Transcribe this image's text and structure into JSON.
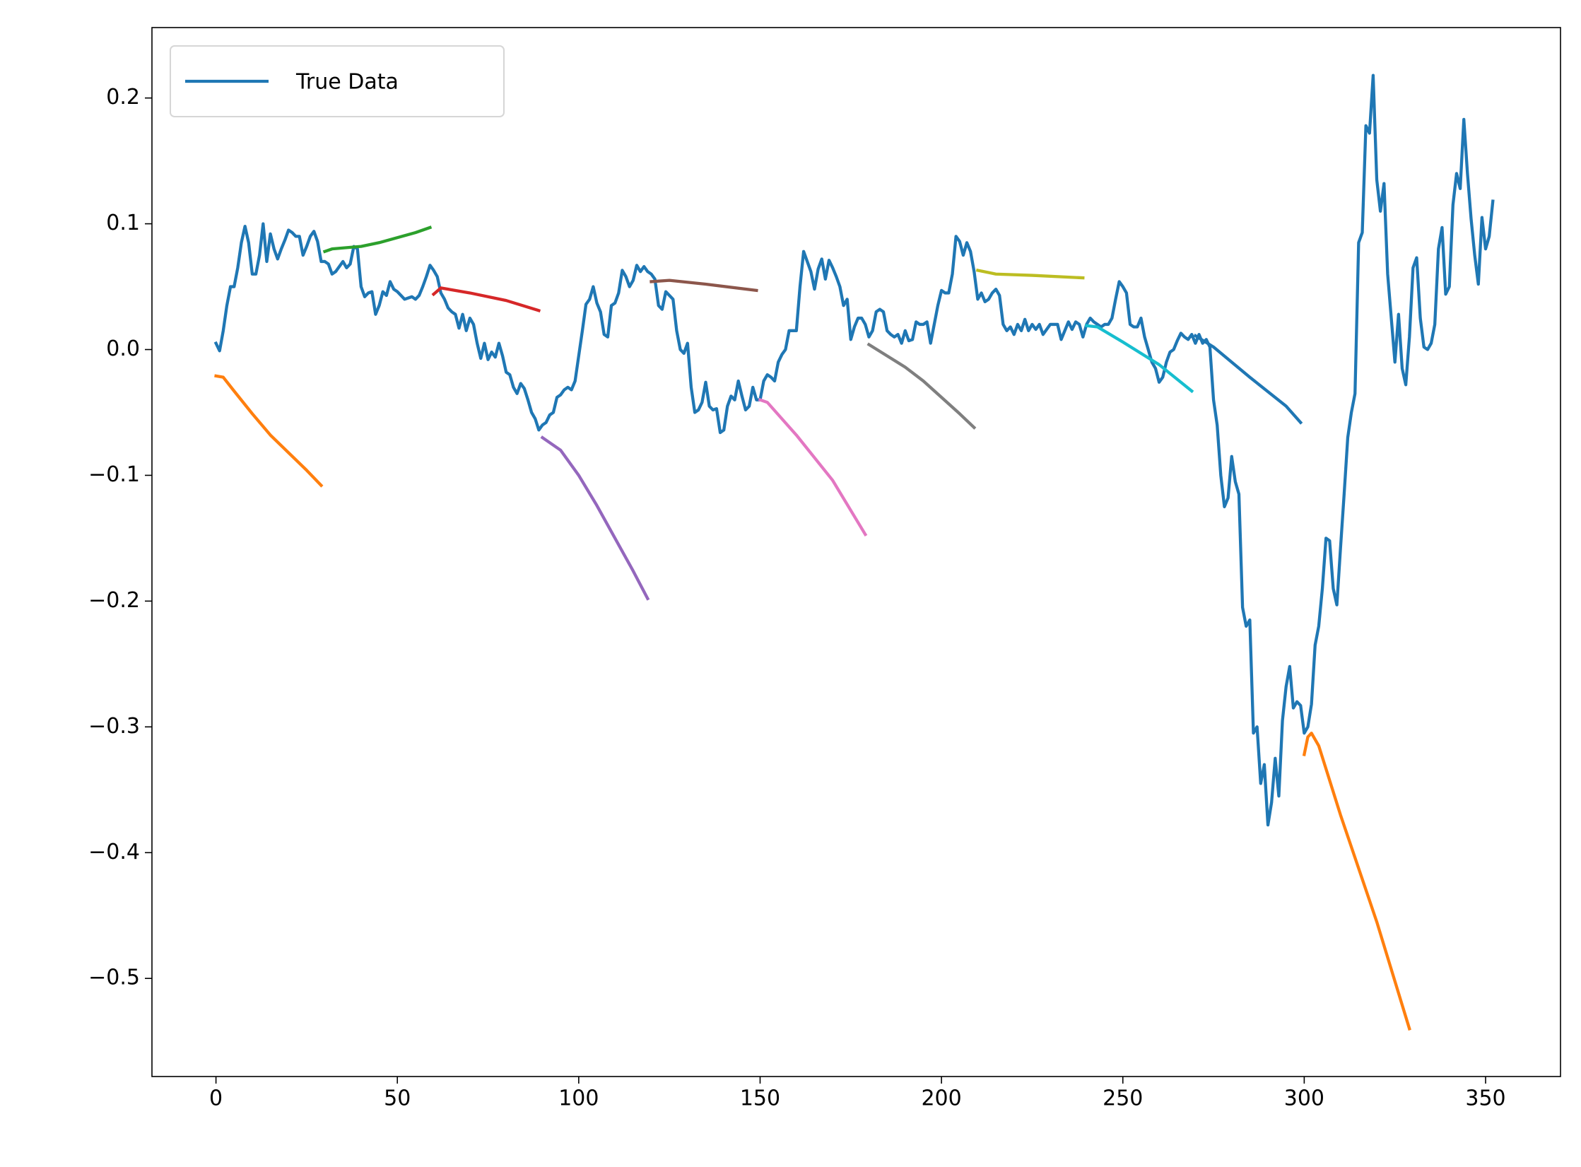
{
  "chart_data": {
    "type": "line",
    "xlim": [
      -17.65,
      370.65
    ],
    "ylim": [
      -0.578,
      0.256
    ],
    "xticks": [
      0,
      50,
      100,
      150,
      200,
      250,
      300,
      350
    ],
    "yticks": [
      {
        "value": -0.5,
        "label": "−0.5"
      },
      {
        "value": -0.4,
        "label": "−0.4"
      },
      {
        "value": -0.3,
        "label": "−0.3"
      },
      {
        "value": -0.2,
        "label": "−0.2"
      },
      {
        "value": -0.1,
        "label": "−0.1"
      },
      {
        "value": 0,
        "label": "0.0"
      },
      0.1,
      0.2
    ],
    "legend": "upper left",
    "series": [
      {
        "name": "True Data",
        "color": "#1f77b4",
        "values": [
          0.005,
          -0.001,
          0.015,
          0.035,
          0.05,
          0.05,
          0.065,
          0.085,
          0.098,
          0.085,
          0.06,
          0.06,
          0.075,
          0.1,
          0.07,
          0.092,
          0.08,
          0.072,
          0.08,
          0.087,
          0.095,
          0.093,
          0.09,
          0.09,
          0.075,
          0.082,
          0.09,
          0.094,
          0.086,
          0.07,
          0.07,
          0.068,
          0.06,
          0.062,
          0.066,
          0.07,
          0.065,
          0.068,
          0.082,
          0.08,
          0.05,
          0.042,
          0.045,
          0.046,
          0.028,
          0.035,
          0.046,
          0.043,
          0.054,
          0.048,
          0.046,
          0.043,
          0.04,
          0.041,
          0.042,
          0.04,
          0.043,
          0.05,
          0.058,
          0.067,
          0.063,
          0.058,
          0.045,
          0.04,
          0.033,
          0.03,
          0.028,
          0.017,
          0.028,
          0.015,
          0.025,
          0.02,
          0.005,
          -0.007,
          0.005,
          -0.008,
          -0.002,
          -0.006,
          0.005,
          -0.005,
          -0.018,
          -0.02,
          -0.03,
          -0.035,
          -0.027,
          -0.031,
          -0.04,
          -0.05,
          -0.055,
          -0.064,
          -0.06,
          -0.058,
          -0.052,
          -0.05,
          -0.038,
          -0.036,
          -0.032,
          -0.03,
          -0.032,
          -0.025,
          -0.005,
          0.015,
          0.036,
          0.04,
          0.05,
          0.037,
          0.03,
          0.012,
          0.01,
          0.035,
          0.037,
          0.045,
          0.063,
          0.058,
          0.05,
          0.055,
          0.067,
          0.062,
          0.066,
          0.062,
          0.06,
          0.056,
          0.035,
          0.032,
          0.046,
          0.043,
          0.04,
          0.015,
          0,
          -0.003,
          0.005,
          -0.03,
          -0.05,
          -0.048,
          -0.042,
          -0.026,
          -0.045,
          -0.048,
          -0.047,
          -0.066,
          -0.064,
          -0.045,
          -0.037,
          -0.04,
          -0.025,
          -0.037,
          -0.048,
          -0.045,
          -0.03,
          -0.04,
          -0.04,
          -0.025,
          -0.02,
          -0.022,
          -0.025,
          -0.01,
          -0.004,
          0,
          0.015,
          0.015,
          0.015,
          0.05,
          0.078,
          0.07,
          0.062,
          0.048,
          0.064,
          0.072,
          0.056,
          0.071,
          0.065,
          0.058,
          0.05,
          0.035,
          0.04,
          0.008,
          0.018,
          0.025,
          0.025,
          0.02,
          0.01,
          0.015,
          0.03,
          0.032,
          0.03,
          0.015,
          0.012,
          0.01,
          0.012,
          0.005,
          0.015,
          0.007,
          0.008,
          0.022,
          0.02,
          0.02,
          0.022,
          0.005,
          0.02,
          0.035,
          0.047,
          0.045,
          0.045,
          0.06,
          0.09,
          0.086,
          0.075,
          0.085,
          0.078,
          0.062,
          0.04,
          0.045,
          0.038,
          0.04,
          0.045,
          0.048,
          0.043,
          0.02,
          0.015,
          0.018,
          0.012,
          0.02,
          0.015,
          0.024,
          0.015,
          0.02,
          0.016,
          0.02,
          0.012,
          0.016,
          0.02,
          0.02,
          0.02,
          0.008,
          0.015,
          0.022,
          0.016,
          0.022,
          0.02,
          0.01,
          0.02,
          0.025,
          0.022,
          0.02,
          0.018,
          0.02,
          0.02,
          0.025,
          0.04,
          0.054,
          0.05,
          0.045,
          0.02,
          0.018,
          0.018,
          0.025,
          0.01,
          0,
          -0.01,
          -0.015,
          -0.026,
          -0.022,
          -0.01,
          -0.002,
          0,
          0.007,
          0.013,
          0.01,
          0.008,
          0.012,
          0.005,
          0.012,
          0.005,
          0.008,
          0.002,
          -0.04,
          -0.06,
          -0.1,
          -0.125,
          -0.118,
          -0.085,
          -0.105,
          -0.115,
          -0.205,
          -0.22,
          -0.215,
          -0.305,
          -0.3,
          -0.345,
          -0.33,
          -0.378,
          -0.36,
          -0.325,
          -0.355,
          -0.295,
          -0.268,
          -0.252,
          -0.285,
          -0.28,
          -0.283,
          -0.305,
          -0.3,
          -0.282,
          -0.235,
          -0.22,
          -0.19,
          -0.15,
          -0.152,
          -0.19,
          -0.203,
          -0.158,
          -0.115,
          -0.07,
          -0.05,
          -0.035,
          0.085,
          0.093,
          0.178,
          0.172,
          0.218,
          0.135,
          0.11,
          0.132,
          0.06,
          0.025,
          -0.01,
          0.028,
          -0.015,
          -0.028,
          0.01,
          0.065,
          0.073,
          0.025,
          0.002,
          0,
          0.005,
          0.02,
          0.08,
          0.097,
          0.044,
          0.05,
          0.115,
          0.14,
          0.128,
          0.183,
          0.14,
          0.104,
          0.075,
          0.052,
          0.105,
          0.08,
          0.09,
          0.118
        ]
      },
      {
        "color": "#ff7f0e",
        "x": [
          0,
          2,
          5,
          10,
          15,
          20,
          25,
          29
        ],
        "values": [
          -0.021,
          -0.022,
          -0.033,
          -0.051,
          -0.068,
          -0.082,
          -0.096,
          -0.108
        ]
      },
      {
        "color": "#2ca02c",
        "x": [
          30,
          32,
          40,
          45,
          50,
          55,
          59
        ],
        "values": [
          0.078,
          0.08,
          0.082,
          0.085,
          0.089,
          0.093,
          0.097
        ]
      },
      {
        "color": "#d62728",
        "x": [
          60,
          62,
          70,
          80,
          89
        ],
        "values": [
          0.044,
          0.049,
          0.045,
          0.039,
          0.031
        ]
      },
      {
        "color": "#9467bd",
        "x": [
          90,
          95,
          100,
          105,
          110,
          115,
          119
        ],
        "values": [
          -0.07,
          -0.08,
          -0.1,
          -0.124,
          -0.15,
          -0.176,
          -0.198
        ]
      },
      {
        "color": "#8c564b",
        "x": [
          120,
          125,
          135,
          149
        ],
        "values": [
          0.054,
          0.055,
          0.052,
          0.047
        ]
      },
      {
        "color": "#e377c2",
        "x": [
          150,
          152,
          160,
          170,
          179
        ],
        "values": [
          -0.04,
          -0.042,
          -0.068,
          -0.104,
          -0.147
        ]
      },
      {
        "color": "#7f7f7f",
        "x": [
          180,
          185,
          190,
          195,
          200,
          205,
          209
        ],
        "values": [
          0.004,
          -0.005,
          -0.014,
          -0.025,
          -0.038,
          -0.051,
          -0.062
        ]
      },
      {
        "color": "#bcbd22",
        "x": [
          210,
          215,
          225,
          239
        ],
        "values": [
          0.063,
          0.06,
          0.059,
          0.057
        ]
      },
      {
        "color": "#17becf",
        "x": [
          240,
          243,
          250,
          260,
          269
        ],
        "values": [
          0.019,
          0.018,
          0.006,
          -0.012,
          -0.033
        ]
      },
      {
        "color": "#1f77b4",
        "x": [
          270,
          275,
          285,
          295,
          299
        ],
        "values": [
          0.011,
          0.002,
          -0.022,
          -0.045,
          -0.058
        ]
      },
      {
        "color": "#ff7f0e",
        "x": [
          300,
          301,
          302,
          304,
          310,
          320,
          329
        ],
        "values": [
          -0.322,
          -0.308,
          -0.305,
          -0.315,
          -0.37,
          -0.455,
          -0.54
        ]
      }
    ]
  }
}
